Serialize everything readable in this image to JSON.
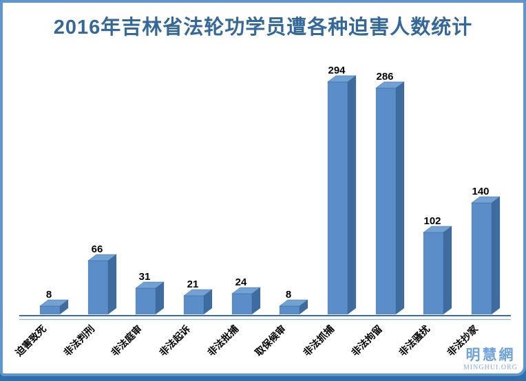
{
  "chart_data": {
    "type": "bar",
    "title": "2016年吉林省法轮功学员遭各种迫害人数统计",
    "categories": [
      "迫害致死",
      "非法判刑",
      "非法庭审",
      "非法起诉",
      "非法批捕",
      "取保候审",
      "非法抓捕",
      "非法拘留",
      "非法骚扰",
      "非法抄家"
    ],
    "values": [
      8,
      66,
      31,
      21,
      24,
      8,
      294,
      286,
      102,
      140
    ],
    "xlabel": "",
    "ylabel": "",
    "ylim": [
      0,
      310
    ],
    "grid": false,
    "legend": false,
    "bar_style": "3d",
    "value_labels_shown": true,
    "category_label_rotation_deg": -45,
    "colors": {
      "title": "#34679A",
      "bar_front": "#5B8EC9",
      "bar_top": "#72A1D4",
      "bar_side": "#3F6C9E",
      "bar_edge": "#2F5A8C",
      "axis_line": "#3A6A9E",
      "axis_line_light": "#8FB3DC",
      "value_label": "#000000",
      "category_label": "#000000"
    }
  },
  "logo": {
    "cjk": "明慧網",
    "latin": "MINGHUI.ORG",
    "cjk_color": "#6FA3DC",
    "latin_color": "#87ACDC"
  },
  "frame": {
    "border_color": "#5F97CC",
    "outer_color": "#2E6FAC",
    "card_background": "#FFFFFF"
  }
}
